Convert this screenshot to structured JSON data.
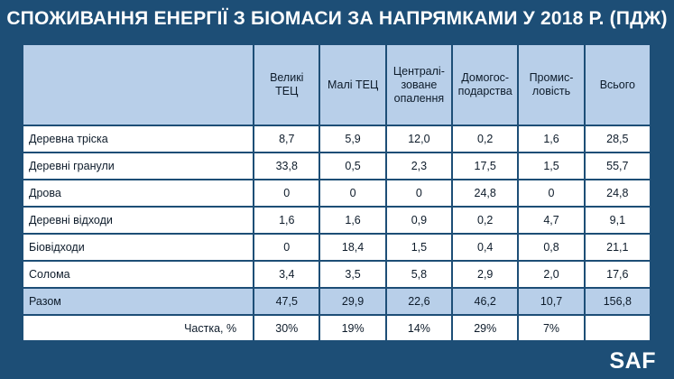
{
  "title": "СПОЖИВАННЯ ЕНЕРГІЇ З БІОМАСИ ЗА НАПРЯМКАМИ У 2018 Р. (ПДЖ)",
  "logo": "SAF",
  "chart_data": {
    "type": "table",
    "title": "СПОЖИВАННЯ ЕНЕРГІЇ З БІОМАСИ ЗА НАПРЯМКАМИ У 2018 Р. (ПДЖ)",
    "columns": [
      "",
      "Великі ТЕЦ",
      "Малі ТЕЦ",
      "Централі-зоване опалення",
      "Домогос-подарства",
      "Промис-ловість",
      "Всього"
    ],
    "rows": [
      {
        "label": "Деревна тріска",
        "values": [
          "8,7",
          "5,9",
          "12,0",
          "0,2",
          "1,6",
          "28,5"
        ]
      },
      {
        "label": "Деревні гранули",
        "values": [
          "33,8",
          "0,5",
          "2,3",
          "17,5",
          "1,5",
          "55,7"
        ]
      },
      {
        "label": "Дрова",
        "values": [
          "0",
          "0",
          "0",
          "24,8",
          "0",
          "24,8"
        ]
      },
      {
        "label": "Деревні відходи",
        "values": [
          "1,6",
          "1,6",
          "0,9",
          "0,2",
          "4,7",
          "9,1"
        ]
      },
      {
        "label": "Біовідходи",
        "values": [
          "0",
          "18,4",
          "1,5",
          "0,4",
          "0,8",
          "21,1"
        ]
      },
      {
        "label": "Солома",
        "values": [
          "3,4",
          "3,5",
          "5,8",
          "2,9",
          "2,0",
          "17,6"
        ]
      }
    ],
    "total": {
      "label": "Разом",
      "values": [
        "47,5",
        "29,9",
        "22,6",
        "46,2",
        "10,7",
        "156,8"
      ]
    },
    "share": {
      "label": "Частка, %",
      "values": [
        "30%",
        "19%",
        "14%",
        "29%",
        "7%",
        ""
      ]
    }
  }
}
